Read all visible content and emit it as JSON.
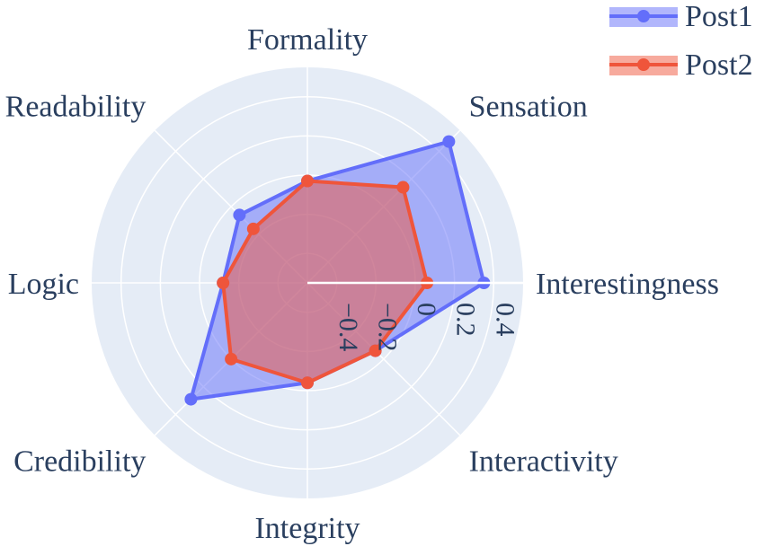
{
  "chart_data": {
    "type": "radar",
    "categories": [
      "Interestingness",
      "Sensation",
      "Formality",
      "Readability",
      "Logic",
      "Credibility",
      "Integrity",
      "Interactivity"
    ],
    "radial_ticks": [
      "−0.4",
      "−0.2",
      "0",
      "0.2",
      "0.4"
    ],
    "radial_tick_values": [
      -0.4,
      -0.2,
      0,
      0.2,
      0.4
    ],
    "radial_range": [
      -0.55,
      0.55
    ],
    "series": [
      {
        "name": "Post1",
        "color": "#636efa",
        "fill": "rgba(99,110,250,0.5)",
        "values": [
          0.35,
          0.47,
          -0.03,
          -0.06,
          -0.12,
          0.29,
          -0.04,
          -0.06
        ]
      },
      {
        "name": "Post2",
        "color": "#ef553b",
        "fill": "rgba(239,85,59,0.5)",
        "values": [
          0.06,
          0.14,
          -0.03,
          -0.16,
          -0.12,
          0.0,
          -0.04,
          -0.06
        ]
      }
    ],
    "legend": "top-right",
    "grid": true
  },
  "colors": {
    "polar_bg": "#e5ecf6",
    "grid": "#ffffff",
    "text": "#2a3f5f"
  }
}
